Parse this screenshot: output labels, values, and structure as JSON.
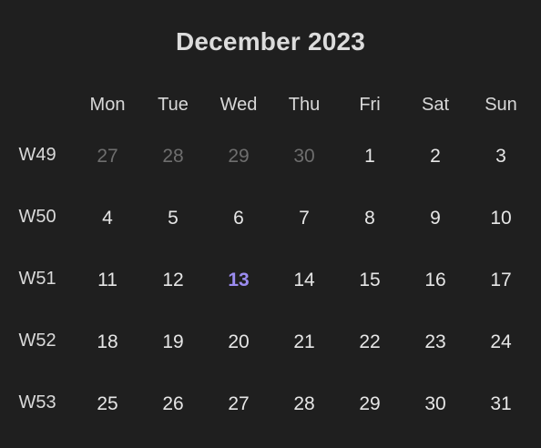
{
  "title": "December 2023",
  "weekdays": [
    "Mon",
    "Tue",
    "Wed",
    "Thu",
    "Fri",
    "Sat",
    "Sun"
  ],
  "colors": {
    "background": "#1f1f1f",
    "text": "#e6e6e6",
    "muted": "#6e6e6e",
    "today": "#9b8cf0"
  },
  "weeks": [
    {
      "label": "W49",
      "days": [
        {
          "n": "27",
          "outside": true
        },
        {
          "n": "28",
          "outside": true
        },
        {
          "n": "29",
          "outside": true
        },
        {
          "n": "30",
          "outside": true
        },
        {
          "n": "1"
        },
        {
          "n": "2"
        },
        {
          "n": "3"
        }
      ]
    },
    {
      "label": "W50",
      "days": [
        {
          "n": "4"
        },
        {
          "n": "5"
        },
        {
          "n": "6"
        },
        {
          "n": "7"
        },
        {
          "n": "8"
        },
        {
          "n": "9"
        },
        {
          "n": "10"
        }
      ]
    },
    {
      "label": "W51",
      "days": [
        {
          "n": "11"
        },
        {
          "n": "12"
        },
        {
          "n": "13",
          "today": true
        },
        {
          "n": "14"
        },
        {
          "n": "15"
        },
        {
          "n": "16"
        },
        {
          "n": "17"
        }
      ]
    },
    {
      "label": "W52",
      "days": [
        {
          "n": "18"
        },
        {
          "n": "19"
        },
        {
          "n": "20"
        },
        {
          "n": "21"
        },
        {
          "n": "22"
        },
        {
          "n": "23"
        },
        {
          "n": "24"
        }
      ]
    },
    {
      "label": "W53",
      "days": [
        {
          "n": "25"
        },
        {
          "n": "26"
        },
        {
          "n": "27"
        },
        {
          "n": "28"
        },
        {
          "n": "29"
        },
        {
          "n": "30"
        },
        {
          "n": "31"
        }
      ]
    }
  ]
}
